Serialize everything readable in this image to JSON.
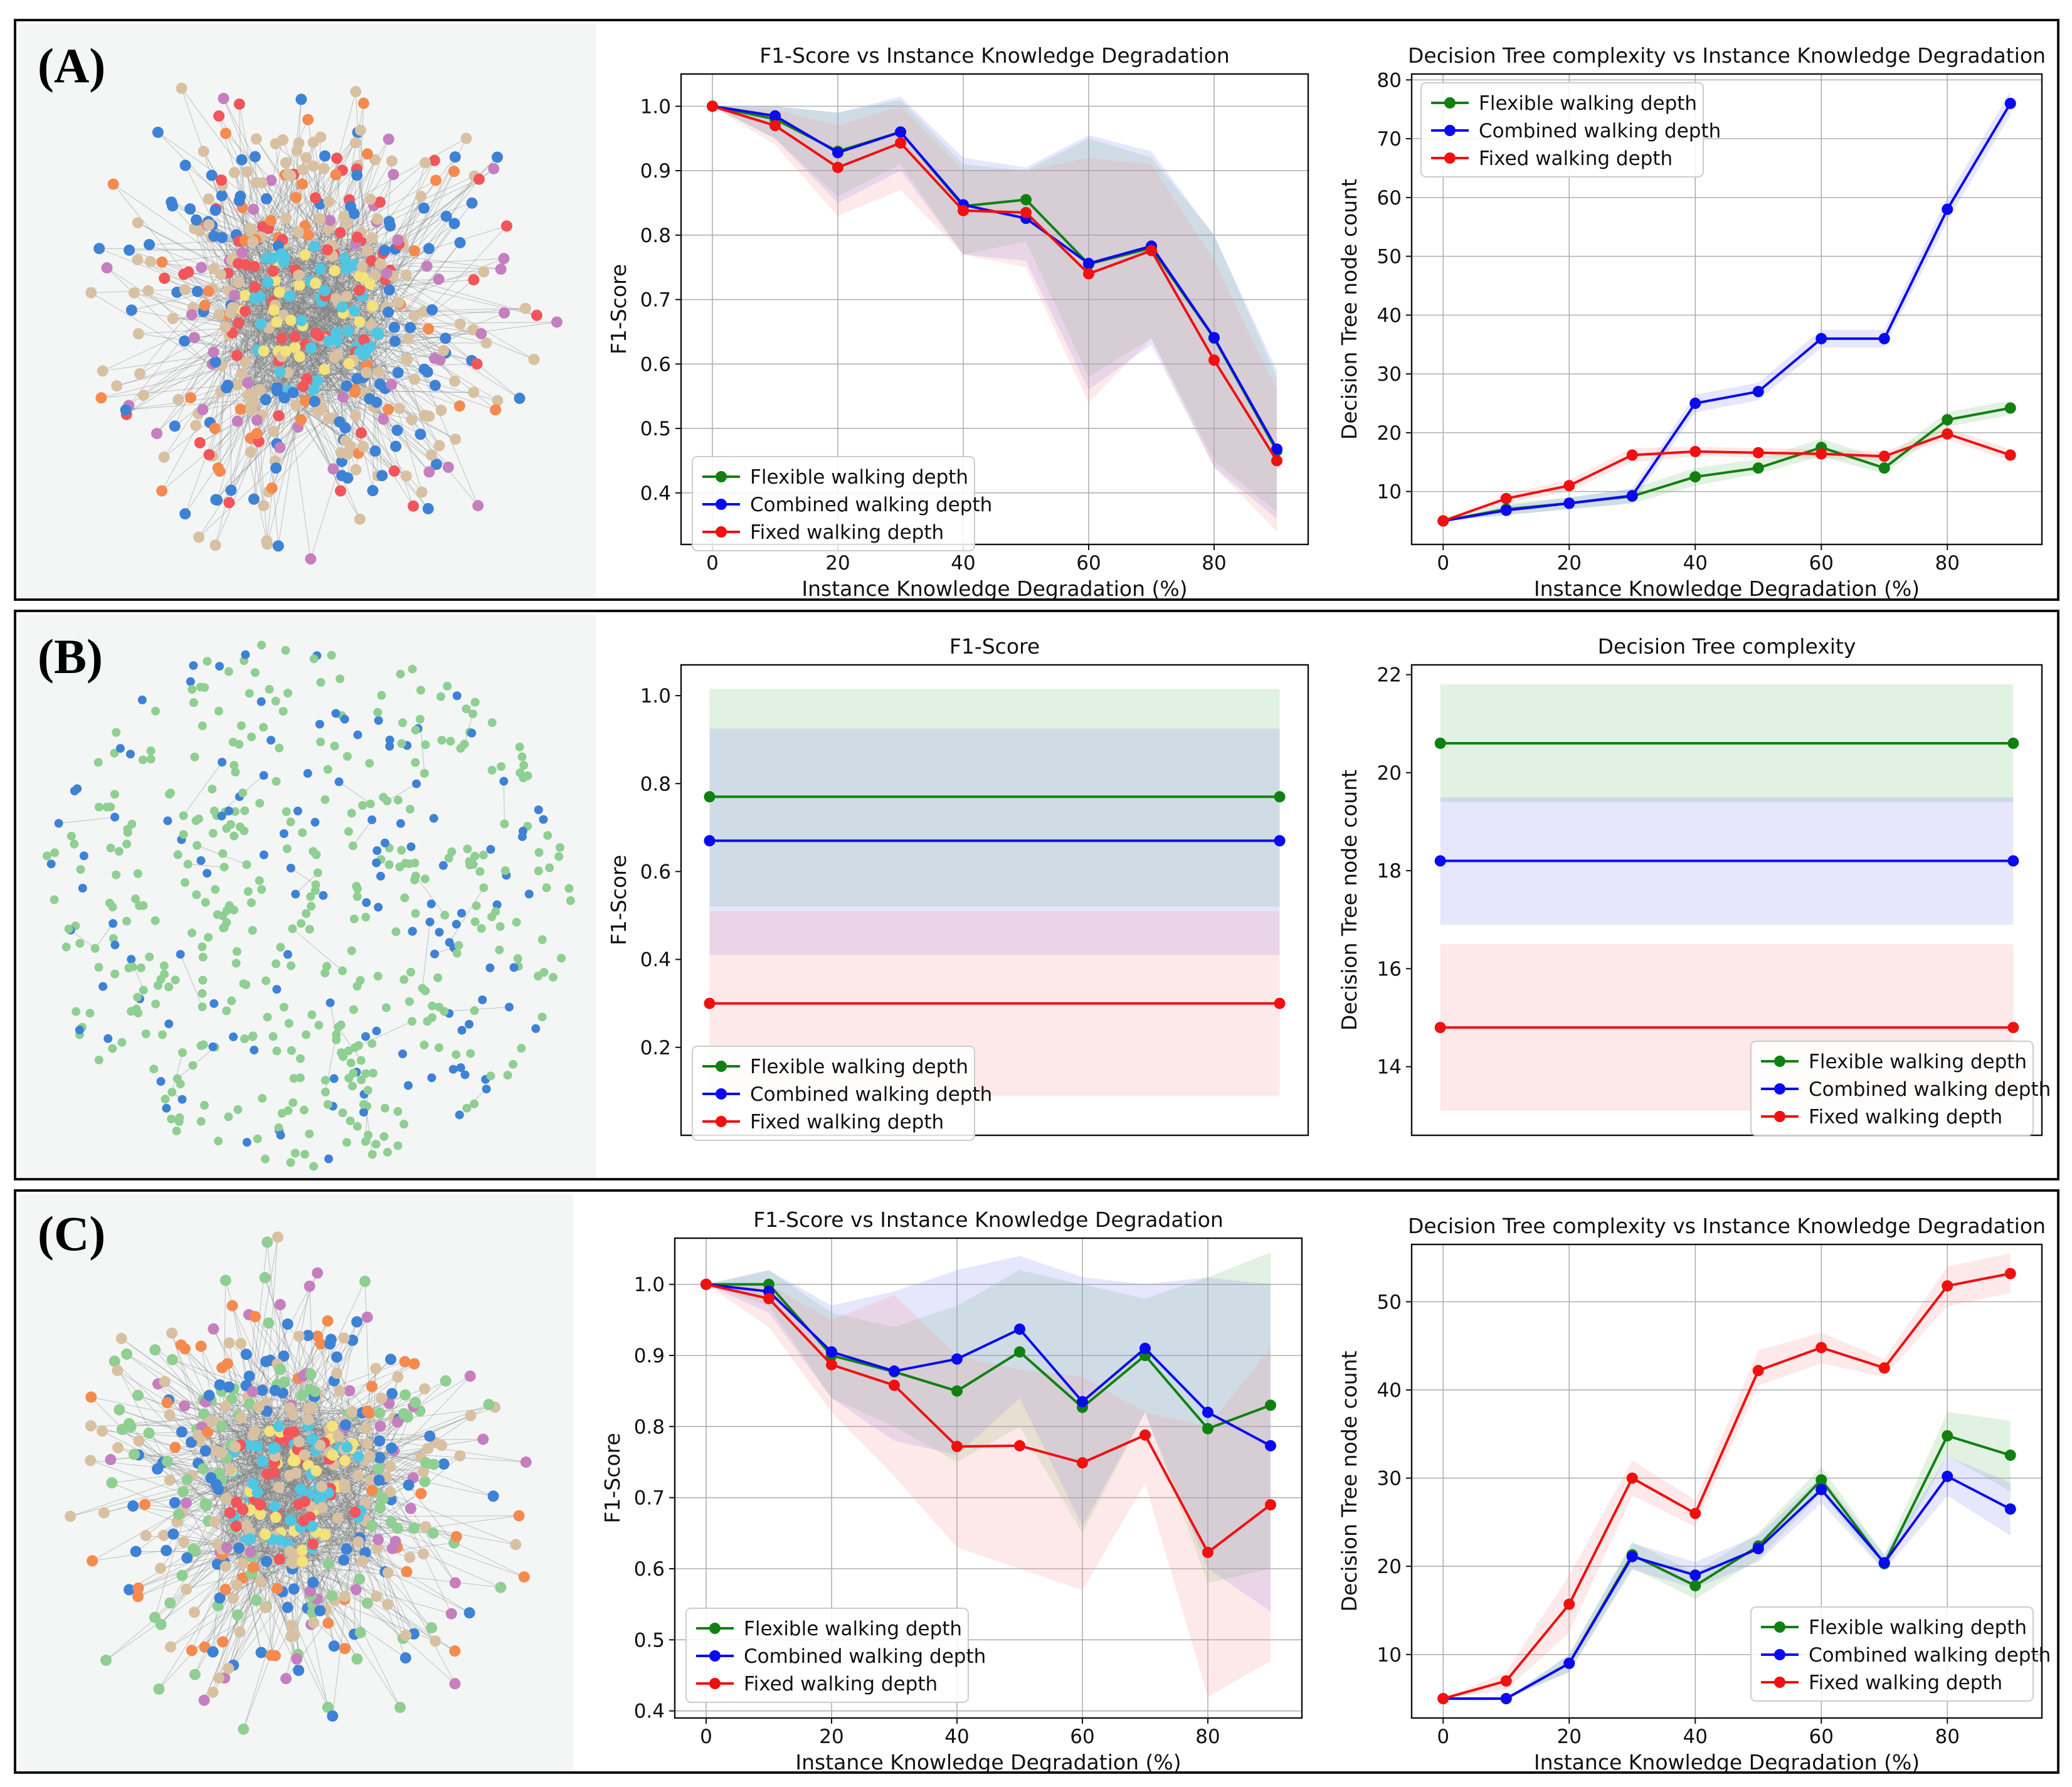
{
  "panels": [
    {
      "label": "(A)"
    },
    {
      "label": "(B)"
    },
    {
      "label": "(C)"
    }
  ],
  "colors": {
    "flexible": "#118011",
    "combined": "#0a0af0",
    "fixed": "#f01010",
    "edge": "#808080",
    "node_tan": "#d8c1a2",
    "node_cyan": "#4fc6e2",
    "node_blue": "#3e82d6",
    "node_pink": "#c57fbf",
    "node_red": "#f2555a",
    "node_orange": "#f58a4f",
    "node_yellow": "#f4e27a",
    "node_green": "#8fcf92"
  },
  "chart_data": [
    {
      "id": "A-f1",
      "type": "line",
      "title": "F1-Score vs Instance Knowledge Degradation",
      "xlabel": "Instance Knowledge Degradation (%)",
      "ylabel": "F1-Score",
      "xlim": [
        -5,
        95
      ],
      "ylim": [
        0.32,
        1.05
      ],
      "xticks": [
        0,
        20,
        40,
        60,
        80
      ],
      "yticks": [
        0.4,
        0.5,
        0.6,
        0.7,
        0.8,
        0.9,
        1.0
      ],
      "ytick_labels": [
        "0.4",
        "0.5",
        "0.6",
        "0.7",
        "0.8",
        "0.9",
        "1.0"
      ],
      "grid": true,
      "legend_position": "lower-left",
      "x": [
        0,
        10,
        20,
        30,
        40,
        50,
        60,
        70,
        80,
        90
      ],
      "series": [
        {
          "name": "Flexible walking depth",
          "color_key": "flexible",
          "values": [
            1.0,
            0.98,
            0.93,
            0.96,
            0.845,
            0.855,
            0.755,
            0.78,
            0.64,
            0.465
          ],
          "lower": [
            1.0,
            0.95,
            0.86,
            0.91,
            0.77,
            0.79,
            0.58,
            0.64,
            0.45,
            0.37
          ],
          "upper": [
            1.0,
            1.0,
            0.99,
            1.01,
            0.91,
            0.9,
            0.95,
            0.92,
            0.8,
            0.58
          ]
        },
        {
          "name": "Combined walking depth",
          "color_key": "combined",
          "values": [
            1.0,
            0.985,
            0.928,
            0.96,
            0.847,
            0.826,
            0.756,
            0.783,
            0.641,
            0.468
          ],
          "lower": [
            1.0,
            0.95,
            0.85,
            0.9,
            0.77,
            0.76,
            0.56,
            0.63,
            0.44,
            0.36
          ],
          "upper": [
            1.0,
            1.0,
            0.99,
            1.015,
            0.92,
            0.905,
            0.955,
            0.93,
            0.8,
            0.59
          ]
        },
        {
          "name": "Fixed walking depth",
          "color_key": "fixed",
          "values": [
            1.0,
            0.97,
            0.905,
            0.943,
            0.838,
            0.835,
            0.74,
            0.776,
            0.606,
            0.45
          ],
          "lower": [
            1.0,
            0.94,
            0.83,
            0.87,
            0.77,
            0.75,
            0.54,
            0.64,
            0.44,
            0.34
          ],
          "upper": [
            1.0,
            0.995,
            0.97,
            1.0,
            0.9,
            0.9,
            0.92,
            0.91,
            0.76,
            0.56
          ]
        }
      ]
    },
    {
      "id": "A-dt",
      "type": "line",
      "title": "Decision Tree complexity vs Instance Knowledge Degradation",
      "xlabel": "Instance Knowledge Degradation (%)",
      "ylabel": "Decision Tree node count",
      "xlim": [
        -5,
        95
      ],
      "ylim": [
        1,
        81
      ],
      "xticks": [
        0,
        20,
        40,
        60,
        80
      ],
      "yticks": [
        10,
        20,
        30,
        40,
        50,
        60,
        70,
        80
      ],
      "ytick_labels": [
        "10",
        "20",
        "30",
        "40",
        "50",
        "60",
        "70",
        "80"
      ],
      "grid": true,
      "legend_position": "top-left",
      "x": [
        0,
        10,
        20,
        30,
        40,
        50,
        60,
        70,
        80,
        90
      ],
      "series": [
        {
          "name": "Flexible walking depth",
          "color_key": "flexible",
          "values": [
            5,
            7,
            8,
            9.2,
            12.5,
            14,
            17.5,
            14,
            22.2,
            24.2
          ],
          "lower": [
            5,
            6,
            7,
            8,
            11,
            13,
            16,
            13,
            21,
            23
          ],
          "upper": [
            5,
            8,
            9,
            10.5,
            14,
            15.5,
            19,
            15.5,
            23.5,
            25.5
          ]
        },
        {
          "name": "Combined walking depth",
          "color_key": "combined",
          "values": [
            5,
            6.8,
            8,
            9.3,
            25,
            27,
            36,
            36,
            58,
            76
          ],
          "lower": [
            5,
            6,
            7,
            8,
            23.5,
            25.5,
            34.5,
            34.5,
            56,
            74
          ],
          "upper": [
            5,
            7.6,
            9,
            10.5,
            26.5,
            28.5,
            37.5,
            37.5,
            60,
            78
          ]
        },
        {
          "name": "Fixed walking depth",
          "color_key": "fixed",
          "values": [
            5,
            8.8,
            11,
            16.2,
            16.8,
            16.6,
            16.4,
            16,
            19.8,
            16.2
          ],
          "lower": [
            5,
            8,
            10,
            15,
            16,
            15.8,
            15.6,
            15.2,
            18.8,
            15.2
          ],
          "upper": [
            5,
            9.6,
            12,
            17.4,
            17.6,
            17.4,
            17.2,
            16.8,
            20.8,
            17.2
          ]
        }
      ]
    },
    {
      "id": "B-f1",
      "type": "line",
      "title": "F1-Score",
      "xlabel": "",
      "ylabel": "F1-Score",
      "xlim": [
        -0.05,
        1.05
      ],
      "ylim": [
        0.0,
        1.07
      ],
      "xticks": [],
      "yticks": [
        0.2,
        0.4,
        0.6,
        0.8,
        1.0
      ],
      "ytick_labels": [
        "0.2",
        "0.4",
        "0.6",
        "0.8",
        "1.0"
      ],
      "grid": false,
      "legend_position": "lower-left",
      "x": [
        0,
        1
      ],
      "series": [
        {
          "name": "Flexible walking depth",
          "color_key": "flexible",
          "values": [
            0.77,
            0.77
          ],
          "lower": [
            0.52,
            0.52
          ],
          "upper": [
            1.015,
            1.015
          ]
        },
        {
          "name": "Combined walking depth",
          "color_key": "combined",
          "values": [
            0.67,
            0.67
          ],
          "lower": [
            0.41,
            0.41
          ],
          "upper": [
            0.925,
            0.925
          ]
        },
        {
          "name": "Fixed walking depth",
          "color_key": "fixed",
          "values": [
            0.3,
            0.3
          ],
          "lower": [
            0.09,
            0.09
          ],
          "upper": [
            0.51,
            0.51
          ]
        }
      ]
    },
    {
      "id": "B-dt",
      "type": "line",
      "title": "Decision Tree complexity",
      "xlabel": "",
      "ylabel": "Decision Tree node count",
      "xlim": [
        -0.05,
        1.05
      ],
      "ylim": [
        12.6,
        22.2
      ],
      "xticks": [],
      "yticks": [
        14,
        16,
        18,
        20,
        22
      ],
      "ytick_labels": [
        "14",
        "16",
        "18",
        "20",
        "22"
      ],
      "grid": false,
      "legend_position": "lower-right",
      "x": [
        0,
        1
      ],
      "series": [
        {
          "name": "Flexible walking depth",
          "color_key": "flexible",
          "values": [
            20.6,
            20.6
          ],
          "lower": [
            19.4,
            19.4
          ],
          "upper": [
            21.8,
            21.8
          ]
        },
        {
          "name": "Combined walking depth",
          "color_key": "combined",
          "values": [
            18.2,
            18.2
          ],
          "lower": [
            16.9,
            16.9
          ],
          "upper": [
            19.5,
            19.5
          ]
        },
        {
          "name": "Fixed walking depth",
          "color_key": "fixed",
          "values": [
            14.8,
            14.8
          ],
          "lower": [
            13.1,
            13.1
          ],
          "upper": [
            16.5,
            16.5
          ]
        }
      ]
    },
    {
      "id": "C-f1",
      "type": "line",
      "title": "F1-Score vs Instance Knowledge Degradation",
      "xlabel": "Instance Knowledge Degradation (%)",
      "ylabel": "F1-Score",
      "xlim": [
        -5,
        95
      ],
      "ylim": [
        0.39,
        1.065
      ],
      "xticks": [
        0,
        20,
        40,
        60,
        80
      ],
      "yticks": [
        0.4,
        0.5,
        0.6,
        0.7,
        0.8,
        0.9,
        1.0
      ],
      "ytick_labels": [
        "0.4",
        "0.5",
        "0.6",
        "0.7",
        "0.8",
        "0.9",
        "1.0"
      ],
      "grid": true,
      "legend_position": "lower-left",
      "x": [
        0,
        10,
        20,
        30,
        40,
        50,
        60,
        70,
        80,
        90
      ],
      "series": [
        {
          "name": "Flexible walking depth",
          "color_key": "flexible",
          "values": [
            1.0,
            1.0,
            0.9,
            0.877,
            0.85,
            0.905,
            0.827,
            0.9,
            0.797,
            0.83
          ],
          "lower": [
            1.0,
            0.97,
            0.84,
            0.8,
            0.75,
            0.8,
            0.65,
            0.82,
            0.58,
            0.6
          ],
          "upper": [
            1.0,
            1.02,
            0.96,
            0.94,
            0.97,
            1.02,
            1.0,
            0.98,
            1.01,
            1.045
          ]
        },
        {
          "name": "Combined walking depth",
          "color_key": "combined",
          "values": [
            1.0,
            0.99,
            0.905,
            0.878,
            0.895,
            0.937,
            0.835,
            0.91,
            0.82,
            0.773
          ],
          "lower": [
            1.0,
            0.96,
            0.84,
            0.78,
            0.76,
            0.84,
            0.66,
            0.82,
            0.6,
            0.54
          ],
          "upper": [
            1.0,
            1.02,
            0.97,
            0.99,
            1.02,
            1.04,
            1.01,
            1.0,
            1.01,
            1.0
          ]
        },
        {
          "name": "Fixed walking depth",
          "color_key": "fixed",
          "values": [
            1.0,
            0.98,
            0.887,
            0.858,
            0.772,
            0.773,
            0.749,
            0.788,
            0.623,
            0.69
          ],
          "lower": [
            1.0,
            0.94,
            0.82,
            0.73,
            0.63,
            0.6,
            0.57,
            0.72,
            0.42,
            0.47
          ],
          "upper": [
            1.0,
            1.0,
            0.95,
            0.985,
            0.9,
            0.88,
            0.87,
            0.82,
            0.8,
            0.91
          ]
        }
      ]
    },
    {
      "id": "C-dt",
      "type": "line",
      "title": "Decision Tree complexity vs Instance Knowledge Degradation",
      "xlabel": "Instance Knowledge Degradation (%)",
      "ylabel": "Decision Tree node count",
      "xlim": [
        -5,
        95
      ],
      "ylim": [
        2.8,
        56.5
      ],
      "xticks": [
        0,
        20,
        40,
        60,
        80
      ],
      "yticks": [
        10,
        20,
        30,
        40,
        50
      ],
      "ytick_labels": [
        "10",
        "20",
        "30",
        "40",
        "50"
      ],
      "grid": true,
      "legend_position": "lower-right",
      "x": [
        0,
        10,
        20,
        30,
        40,
        50,
        60,
        70,
        80,
        90
      ],
      "series": [
        {
          "name": "Flexible walking depth",
          "color_key": "flexible",
          "values": [
            5,
            5,
            9,
            21.3,
            17.8,
            22.3,
            29.8,
            20.3,
            34.8,
            32.6
          ],
          "lower": [
            5,
            5,
            8,
            19.8,
            16.3,
            20.8,
            28.3,
            19.5,
            32.5,
            28.5
          ],
          "upper": [
            5,
            5,
            10,
            22.8,
            19.3,
            23.8,
            31.3,
            21.3,
            37.5,
            36.5
          ]
        },
        {
          "name": "Combined walking depth",
          "color_key": "combined",
          "values": [
            5,
            5,
            9,
            21.1,
            19,
            22,
            28.7,
            20.4,
            30.2,
            26.5
          ],
          "lower": [
            5,
            5,
            8,
            19.6,
            17.5,
            20.5,
            27.2,
            19.5,
            28,
            23.5
          ],
          "upper": [
            5,
            5,
            10,
            22.6,
            20.5,
            23.5,
            30.2,
            21.3,
            32.5,
            29.5
          ]
        },
        {
          "name": "Fixed walking depth",
          "color_key": "fixed",
          "values": [
            5,
            7,
            15.7,
            30,
            26,
            42.2,
            44.8,
            42.5,
            51.8,
            53.2
          ],
          "lower": [
            5,
            6,
            12.5,
            28,
            24.5,
            40.5,
            43,
            41.5,
            49.5,
            51
          ],
          "upper": [
            5,
            8,
            19,
            32,
            27.5,
            44.5,
            46.5,
            43.5,
            54,
            55.5
          ]
        }
      ]
    }
  ]
}
